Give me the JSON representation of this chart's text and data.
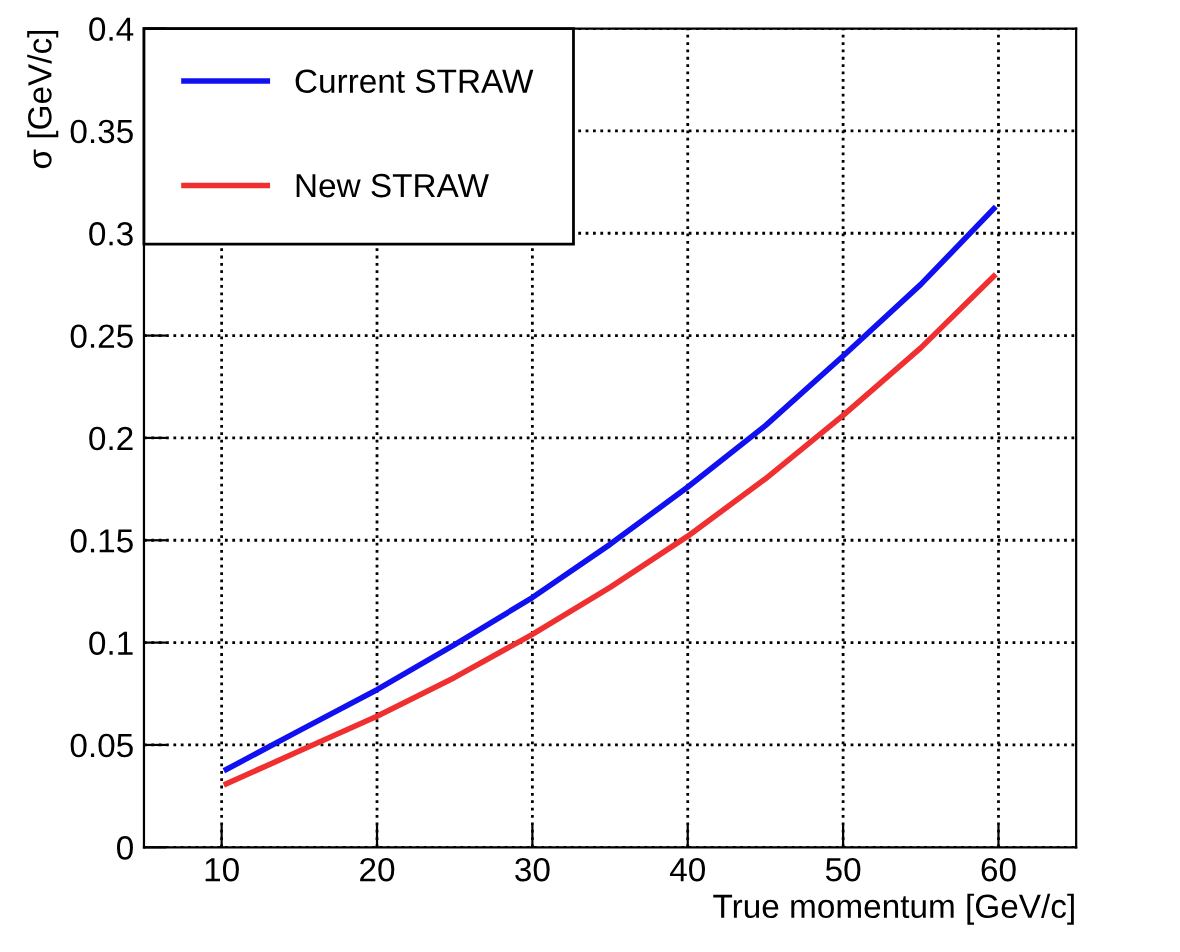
{
  "chart_data": {
    "type": "line",
    "xlabel": "True momentum [GeV/c]",
    "ylabel": "σ [GeV/c]",
    "x": [
      10.3,
      15,
      20,
      25,
      30,
      35,
      40,
      45,
      50,
      55,
      59.7
    ],
    "series": [
      {
        "name": "Current STRAW",
        "color": "#1010f0",
        "values": [
          0.038,
          0.057,
          0.077,
          0.099,
          0.122,
          0.148,
          0.176,
          0.206,
          0.24,
          0.275,
          0.312
        ]
      },
      {
        "name": "New STRAW",
        "color": "#f03030",
        "values": [
          0.031,
          0.047,
          0.064,
          0.083,
          0.104,
          0.127,
          0.152,
          0.18,
          0.211,
          0.244,
          0.279
        ]
      }
    ],
    "xlim": [
      5,
      65
    ],
    "ylim": [
      0,
      0.4
    ],
    "xticks": [
      10,
      20,
      30,
      40,
      50,
      60
    ],
    "yticks": [
      0,
      0.05,
      0.1,
      0.15,
      0.2,
      0.25,
      0.3,
      0.35,
      0.4
    ],
    "grid": true,
    "legend": "top left",
    "marker": "none",
    "line_style": "solid"
  }
}
